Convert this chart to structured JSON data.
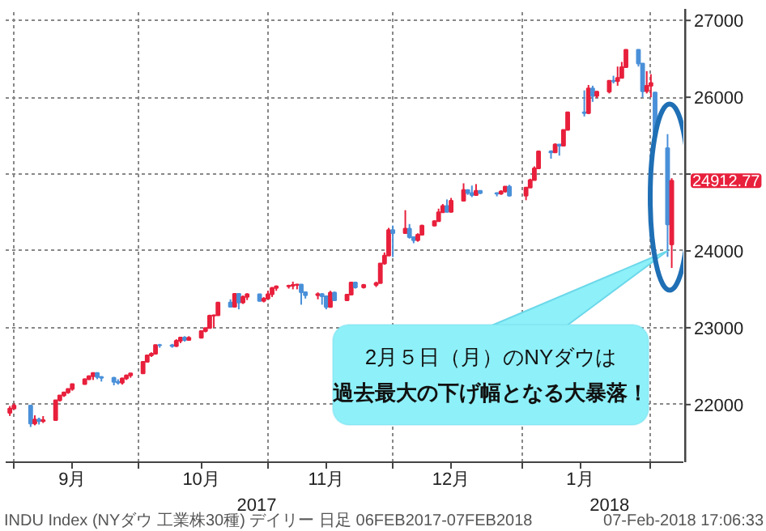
{
  "chart_data": {
    "type": "candlestick",
    "x": [
      "2017-08-31",
      "2017-09-01",
      "2017-09-05",
      "2017-09-06",
      "2017-09-07",
      "2017-09-08",
      "2017-09-11",
      "2017-09-12",
      "2017-09-13",
      "2017-09-14",
      "2017-09-15",
      "2017-09-18",
      "2017-09-19",
      "2017-09-20",
      "2017-09-21",
      "2017-09-22",
      "2017-09-25",
      "2017-09-26",
      "2017-09-27",
      "2017-09-28",
      "2017-09-29",
      "2017-10-02",
      "2017-10-03",
      "2017-10-04",
      "2017-10-05",
      "2017-10-06",
      "2017-10-09",
      "2017-10-10",
      "2017-10-11",
      "2017-10-12",
      "2017-10-13",
      "2017-10-16",
      "2017-10-17",
      "2017-10-18",
      "2017-10-19",
      "2017-10-20",
      "2017-10-23",
      "2017-10-24",
      "2017-10-25",
      "2017-10-26",
      "2017-10-27",
      "2017-10-30",
      "2017-10-31",
      "2017-11-01",
      "2017-11-02",
      "2017-11-03",
      "2017-11-06",
      "2017-11-07",
      "2017-11-08",
      "2017-11-09",
      "2017-11-10",
      "2017-11-13",
      "2017-11-14",
      "2017-11-15",
      "2017-11-16",
      "2017-11-17",
      "2017-11-20",
      "2017-11-21",
      "2017-11-22",
      "2017-11-24",
      "2017-11-27",
      "2017-11-28",
      "2017-11-29",
      "2017-11-30",
      "2017-12-01",
      "2017-12-04",
      "2017-12-05",
      "2017-12-06",
      "2017-12-07",
      "2017-12-08",
      "2017-12-11",
      "2017-12-12",
      "2017-12-13",
      "2017-12-14",
      "2017-12-15",
      "2017-12-18",
      "2017-12-19",
      "2017-12-20",
      "2017-12-21",
      "2017-12-22",
      "2017-12-26",
      "2017-12-27",
      "2017-12-28",
      "2017-12-29",
      "2018-01-02",
      "2018-01-03",
      "2018-01-04",
      "2018-01-05",
      "2018-01-08",
      "2018-01-09",
      "2018-01-10",
      "2018-01-11",
      "2018-01-12",
      "2018-01-16",
      "2018-01-17",
      "2018-01-18",
      "2018-01-19",
      "2018-01-22",
      "2018-01-23",
      "2018-01-24",
      "2018-01-25",
      "2018-01-26",
      "2018-01-29",
      "2018-01-30",
      "2018-01-31",
      "2018-02-01",
      "2018-02-02",
      "2018-02-05",
      "2018-02-06"
    ],
    "ohlc": [
      [
        21892,
        21981,
        21852,
        21948
      ],
      [
        21948,
        22016,
        21940,
        21988
      ],
      [
        21988,
        21990,
        21708,
        21753
      ],
      [
        21753,
        21860,
        21730,
        21807
      ],
      [
        21807,
        21830,
        21740,
        21784
      ],
      [
        21784,
        21850,
        21760,
        21798
      ],
      [
        21798,
        22060,
        21798,
        22057
      ],
      [
        22057,
        22120,
        22040,
        22118
      ],
      [
        22118,
        22160,
        22100,
        22158
      ],
      [
        22158,
        22210,
        22140,
        22203
      ],
      [
        22203,
        22270,
        22180,
        22268
      ],
      [
        22268,
        22340,
        22260,
        22331
      ],
      [
        22331,
        22380,
        22320,
        22370
      ],
      [
        22370,
        22415,
        22320,
        22412
      ],
      [
        22412,
        22420,
        22330,
        22359
      ],
      [
        22359,
        22370,
        22300,
        22349
      ],
      [
        22349,
        22360,
        22250,
        22296
      ],
      [
        22296,
        22330,
        22260,
        22284
      ],
      [
        22284,
        22350,
        22260,
        22341
      ],
      [
        22341,
        22390,
        22320,
        22381
      ],
      [
        22381,
        22410,
        22350,
        22405
      ],
      [
        22405,
        22560,
        22405,
        22557
      ],
      [
        22557,
        22650,
        22550,
        22641
      ],
      [
        22641,
        22680,
        22620,
        22661
      ],
      [
        22661,
        22780,
        22650,
        22775
      ],
      [
        22775,
        22790,
        22740,
        22773
      ],
      [
        22773,
        22790,
        22740,
        22761
      ],
      [
        22761,
        22850,
        22750,
        22831
      ],
      [
        22831,
        22880,
        22800,
        22872
      ],
      [
        22872,
        22890,
        22820,
        22841
      ],
      [
        22841,
        22890,
        22830,
        22871
      ],
      [
        22871,
        22960,
        22860,
        22957
      ],
      [
        22957,
        23000,
        22940,
        22997
      ],
      [
        22997,
        23170,
        22990,
        23158
      ],
      [
        23158,
        23170,
        23000,
        23163
      ],
      [
        23163,
        23330,
        23160,
        23329
      ],
      [
        23329,
        23370,
        23270,
        23274
      ],
      [
        23274,
        23450,
        23270,
        23441
      ],
      [
        23441,
        23450,
        23240,
        23329
      ],
      [
        23329,
        23420,
        23310,
        23401
      ],
      [
        23401,
        23450,
        23360,
        23435
      ],
      [
        23435,
        23440,
        23340,
        23349
      ],
      [
        23349,
        23400,
        23330,
        23377
      ],
      [
        23377,
        23480,
        23370,
        23435
      ],
      [
        23435,
        23530,
        23400,
        23517
      ],
      [
        23517,
        23550,
        23480,
        23539
      ],
      [
        23539,
        23560,
        23510,
        23548
      ],
      [
        23548,
        23600,
        23500,
        23557
      ],
      [
        23557,
        23570,
        23500,
        23563
      ],
      [
        23563,
        23565,
        23300,
        23462
      ],
      [
        23462,
        23470,
        23380,
        23422
      ],
      [
        23422,
        23460,
        23370,
        23440
      ],
      [
        23440,
        23450,
        23300,
        23409
      ],
      [
        23409,
        23410,
        23240,
        23271
      ],
      [
        23271,
        23480,
        23271,
        23458
      ],
      [
        23458,
        23470,
        23350,
        23358
      ],
      [
        23358,
        23440,
        23350,
        23430
      ],
      [
        23430,
        23600,
        23430,
        23590
      ],
      [
        23590,
        23600,
        23510,
        23526
      ],
      [
        23526,
        23570,
        23510,
        23558
      ],
      [
        23558,
        23600,
        23530,
        23580
      ],
      [
        23580,
        23840,
        23580,
        23836
      ],
      [
        23836,
        23980,
        23820,
        23940
      ],
      [
        23940,
        24300,
        23940,
        24272
      ],
      [
        24272,
        24330,
        23920,
        24231
      ],
      [
        24231,
        24530,
        24231,
        24290
      ],
      [
        24290,
        24350,
        24160,
        24180
      ],
      [
        24180,
        24190,
        24100,
        24140
      ],
      [
        24140,
        24230,
        24120,
        24211
      ],
      [
        24211,
        24340,
        24210,
        24329
      ],
      [
        24329,
        24400,
        24320,
        24387
      ],
      [
        24387,
        24550,
        24380,
        24504
      ],
      [
        24504,
        24610,
        24500,
        24585
      ],
      [
        24585,
        24670,
        24500,
        24509
      ],
      [
        24509,
        24690,
        24500,
        24652
      ],
      [
        24652,
        24880,
        24650,
        24792
      ],
      [
        24792,
        24800,
        24730,
        24754
      ],
      [
        24754,
        24850,
        24700,
        24726
      ],
      [
        24726,
        24870,
        24720,
        24782
      ],
      [
        24782,
        24790,
        24740,
        24754
      ],
      [
        24754,
        24760,
        24710,
        24746
      ],
      [
        24746,
        24790,
        24730,
        24774
      ],
      [
        24774,
        24840,
        24760,
        24838
      ],
      [
        24838,
        24860,
        24710,
        24719
      ],
      [
        24719,
        24830,
        24660,
        24824
      ],
      [
        24824,
        24940,
        24820,
        24922
      ],
      [
        24922,
        25100,
        24920,
        25075
      ],
      [
        25075,
        25300,
        25070,
        25296
      ],
      [
        25296,
        25310,
        25200,
        25283
      ],
      [
        25283,
        25400,
        25280,
        25386
      ],
      [
        25386,
        25390,
        25240,
        25370
      ],
      [
        25370,
        25580,
        25360,
        25575
      ],
      [
        25575,
        25810,
        25570,
        25803
      ],
      [
        25803,
        26090,
        25750,
        25793
      ],
      [
        25793,
        26160,
        25780,
        26116
      ],
      [
        26116,
        26150,
        25940,
        26017
      ],
      [
        26017,
        26080,
        25990,
        26072
      ],
      [
        26072,
        26220,
        26050,
        26214
      ],
      [
        26214,
        26280,
        26180,
        26211
      ],
      [
        26211,
        26400,
        26150,
        26252
      ],
      [
        26252,
        26460,
        26250,
        26392
      ],
      [
        26392,
        26620,
        26390,
        26617
      ],
      [
        26617,
        26620,
        26400,
        26440
      ],
      [
        26440,
        26440,
        26000,
        26077
      ],
      [
        26077,
        26340,
        26050,
        26149
      ],
      [
        26149,
        26300,
        26000,
        26187
      ],
      [
        26062,
        26062,
        25490,
        25521
      ],
      [
        25337,
        25520,
        23923,
        24346
      ],
      [
        24085,
        24946,
        23778,
        24912.77
      ]
    ],
    "colors": [
      "#e8203c",
      "#e8203c",
      "#4a90d9",
      "#e8203c",
      "#4a90d9",
      "#e8203c",
      "#e8203c",
      "#e8203c",
      "#e8203c",
      "#e8203c",
      "#e8203c",
      "#e8203c",
      "#e8203c",
      "#e8203c",
      "#4a90d9",
      "#4a90d9",
      "#4a90d9",
      "#4a90d9",
      "#e8203c",
      "#e8203c",
      "#e8203c",
      "#e8203c",
      "#e8203c",
      "#e8203c",
      "#e8203c",
      "#4a90d9",
      "#4a90d9",
      "#e8203c",
      "#e8203c",
      "#4a90d9",
      "#e8203c",
      "#e8203c",
      "#e8203c",
      "#e8203c",
      "#e8203c",
      "#e8203c",
      "#4a90d9",
      "#e8203c",
      "#4a90d9",
      "#e8203c",
      "#e8203c",
      "#4a90d9",
      "#e8203c",
      "#e8203c",
      "#e8203c",
      "#e8203c",
      "#e8203c",
      "#e8203c",
      "#e8203c",
      "#4a90d9",
      "#4a90d9",
      "#e8203c",
      "#4a90d9",
      "#4a90d9",
      "#e8203c",
      "#4a90d9",
      "#e8203c",
      "#e8203c",
      "#4a90d9",
      "#e8203c",
      "#e8203c",
      "#e8203c",
      "#e8203c",
      "#e8203c",
      "#4a90d9",
      "#e8203c",
      "#4a90d9",
      "#4a90d9",
      "#e8203c",
      "#e8203c",
      "#e8203c",
      "#e8203c",
      "#e8203c",
      "#4a90d9",
      "#e8203c",
      "#e8203c",
      "#4a90d9",
      "#4a90d9",
      "#e8203c",
      "#4a90d9",
      "#4a90d9",
      "#e8203c",
      "#e8203c",
      "#4a90d9",
      "#e8203c",
      "#e8203c",
      "#e8203c",
      "#e8203c",
      "#4a90d9",
      "#e8203c",
      "#4a90d9",
      "#e8203c",
      "#e8203c",
      "#4a90d9",
      "#e8203c",
      "#4a90d9",
      "#e8203c",
      "#e8203c",
      "#4a90d9",
      "#e8203c",
      "#e8203c",
      "#e8203c",
      "#4a90d9",
      "#4a90d9",
      "#e8203c",
      "#e8203c",
      "#4a90d9",
      "#4a90d9",
      "#e8203c"
    ],
    "xlim": [
      "2017-08-30",
      "2018-02-09"
    ],
    "xticks": [
      {
        "value": "2017-09-01",
        "label": null
      },
      {
        "value": "2017-09-15",
        "label": "9月"
      },
      {
        "value": "2017-10-01",
        "label": null
      },
      {
        "value": "2017-10-16",
        "label": "10月"
      },
      {
        "value": "2017-11-01",
        "label": null
      },
      {
        "value": "2017-11-15",
        "label": "11月"
      },
      {
        "value": "2017-12-01",
        "label": null
      },
      {
        "value": "2017-12-15",
        "label": "12月"
      },
      {
        "value": "2018-01-01",
        "label": null
      },
      {
        "value": "2018-01-15",
        "label": "1月"
      },
      {
        "value": "2018-02-01",
        "label": null
      }
    ],
    "ylim": [
      21250,
      27150
    ],
    "yticks": [
      22000,
      23000,
      24000,
      {
        "value": 25000,
        "label": null
      },
      26000,
      27000
    ],
    "grid": true,
    "annotations": [
      "2017",
      "2018",
      "24912.77",
      {
        "text": "2月５日（月）のNYダウは",
        "x": "2018-02-05",
        "y": 24000
      },
      "過去最大の下げ幅となる大暴落！",
      "INDU Index (NYダウ 工業株30種) デイリー 日足 06FEB2017-07FEB2018",
      "07-Feb-2018 17:06:33"
    ]
  }
}
